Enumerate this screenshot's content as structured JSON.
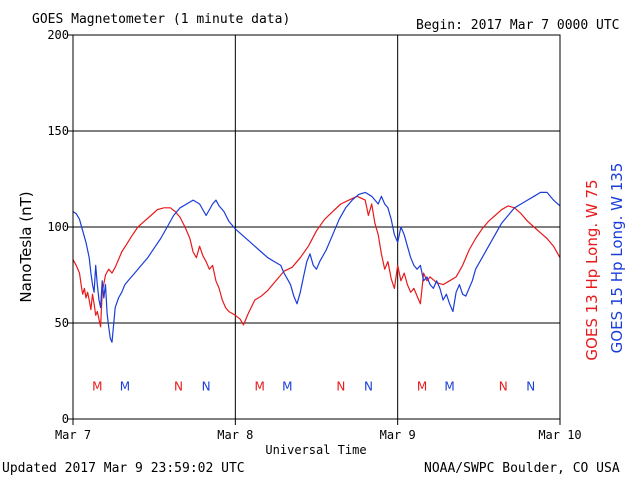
{
  "header": {
    "title": "GOES Magnetometer (1 minute data)",
    "begin": "Begin:  2017 Mar 7 0000 UTC"
  },
  "footer": {
    "updated": "Updated 2017 Mar  9 23:59:02 UTC",
    "credit": "NOAA/SWPC Boulder, CO USA"
  },
  "chart_data": {
    "type": "line",
    "title": "GOES Magnetometer (1 minute data)",
    "xlabel": "Universal Time",
    "ylabel": "NanoTesla (nT)",
    "xlim": [
      0,
      3
    ],
    "ylim": [
      0,
      200
    ],
    "x_ticks": [
      {
        "value": 0,
        "label": "Mar 7"
      },
      {
        "value": 1,
        "label": "Mar 8"
      },
      {
        "value": 2,
        "label": "Mar 9"
      },
      {
        "value": 3,
        "label": "Mar 10"
      }
    ],
    "y_ticks": [
      {
        "value": 0,
        "label": "0"
      },
      {
        "value": 50,
        "label": "50"
      },
      {
        "value": 100,
        "label": "100"
      },
      {
        "value": 150,
        "label": "150"
      },
      {
        "value": 200,
        "label": "200"
      }
    ],
    "grid": true,
    "series": [
      {
        "name": "GOES 13 Hp  Long. W 75",
        "color": "#e8191a",
        "points": [
          [
            0.0,
            83
          ],
          [
            0.02,
            80
          ],
          [
            0.04,
            76
          ],
          [
            0.05,
            70
          ],
          [
            0.06,
            65
          ],
          [
            0.07,
            68
          ],
          [
            0.08,
            63
          ],
          [
            0.09,
            66
          ],
          [
            0.1,
            62
          ],
          [
            0.11,
            57
          ],
          [
            0.12,
            65
          ],
          [
            0.13,
            60
          ],
          [
            0.14,
            54
          ],
          [
            0.15,
            56
          ],
          [
            0.16,
            52
          ],
          [
            0.17,
            48
          ],
          [
            0.18,
            66
          ],
          [
            0.2,
            75
          ],
          [
            0.22,
            78
          ],
          [
            0.24,
            76
          ],
          [
            0.26,
            79
          ],
          [
            0.28,
            83
          ],
          [
            0.3,
            87
          ],
          [
            0.33,
            91
          ],
          [
            0.36,
            95
          ],
          [
            0.4,
            100
          ],
          [
            0.44,
            103
          ],
          [
            0.48,
            106
          ],
          [
            0.52,
            109
          ],
          [
            0.56,
            110
          ],
          [
            0.6,
            110
          ],
          [
            0.63,
            108
          ],
          [
            0.66,
            105
          ],
          [
            0.69,
            100
          ],
          [
            0.72,
            94
          ],
          [
            0.74,
            87
          ],
          [
            0.76,
            84
          ],
          [
            0.78,
            90
          ],
          [
            0.8,
            85
          ],
          [
            0.82,
            82
          ],
          [
            0.84,
            78
          ],
          [
            0.86,
            80
          ],
          [
            0.88,
            72
          ],
          [
            0.9,
            68
          ],
          [
            0.92,
            62
          ],
          [
            0.94,
            58
          ],
          [
            0.96,
            56
          ],
          [
            0.98,
            55
          ],
          [
            1.0,
            54
          ],
          [
            1.03,
            52
          ],
          [
            1.05,
            49
          ],
          [
            1.08,
            55
          ],
          [
            1.12,
            62
          ],
          [
            1.16,
            64
          ],
          [
            1.2,
            67
          ],
          [
            1.25,
            72
          ],
          [
            1.3,
            77
          ],
          [
            1.35,
            79
          ],
          [
            1.4,
            84
          ],
          [
            1.45,
            90
          ],
          [
            1.5,
            98
          ],
          [
            1.55,
            104
          ],
          [
            1.6,
            108
          ],
          [
            1.65,
            112
          ],
          [
            1.7,
            114
          ],
          [
            1.75,
            116
          ],
          [
            1.8,
            114
          ],
          [
            1.82,
            106
          ],
          [
            1.84,
            112
          ],
          [
            1.86,
            102
          ],
          [
            1.88,
            96
          ],
          [
            1.9,
            86
          ],
          [
            1.92,
            78
          ],
          [
            1.94,
            82
          ],
          [
            1.96,
            73
          ],
          [
            1.98,
            68
          ],
          [
            2.0,
            80
          ],
          [
            2.02,
            72
          ],
          [
            2.04,
            76
          ],
          [
            2.06,
            70
          ],
          [
            2.08,
            66
          ],
          [
            2.1,
            68
          ],
          [
            2.12,
            64
          ],
          [
            2.14,
            60
          ],
          [
            2.16,
            76
          ],
          [
            2.18,
            72
          ],
          [
            2.2,
            74
          ],
          [
            2.24,
            71
          ],
          [
            2.28,
            70
          ],
          [
            2.32,
            72
          ],
          [
            2.36,
            74
          ],
          [
            2.4,
            80
          ],
          [
            2.44,
            88
          ],
          [
            2.48,
            94
          ],
          [
            2.52,
            99
          ],
          [
            2.56,
            103
          ],
          [
            2.6,
            106
          ],
          [
            2.64,
            109
          ],
          [
            2.68,
            111
          ],
          [
            2.72,
            110
          ],
          [
            2.76,
            107
          ],
          [
            2.8,
            103
          ],
          [
            2.84,
            100
          ],
          [
            2.88,
            97
          ],
          [
            2.92,
            94
          ],
          [
            2.96,
            90
          ],
          [
            3.0,
            84
          ]
        ]
      },
      {
        "name": "GOES 15 Hp  Long. W 135",
        "color": "#1a3dd9",
        "points": [
          [
            0.0,
            108
          ],
          [
            0.02,
            107
          ],
          [
            0.04,
            104
          ],
          [
            0.06,
            98
          ],
          [
            0.08,
            92
          ],
          [
            0.1,
            84
          ],
          [
            0.11,
            76
          ],
          [
            0.12,
            70
          ],
          [
            0.13,
            66
          ],
          [
            0.14,
            80
          ],
          [
            0.15,
            70
          ],
          [
            0.16,
            62
          ],
          [
            0.17,
            58
          ],
          [
            0.18,
            72
          ],
          [
            0.19,
            63
          ],
          [
            0.2,
            70
          ],
          [
            0.21,
            55
          ],
          [
            0.22,
            48
          ],
          [
            0.23,
            42
          ],
          [
            0.24,
            40
          ],
          [
            0.26,
            58
          ],
          [
            0.28,
            63
          ],
          [
            0.3,
            66
          ],
          [
            0.32,
            70
          ],
          [
            0.35,
            73
          ],
          [
            0.38,
            76
          ],
          [
            0.42,
            80
          ],
          [
            0.46,
            84
          ],
          [
            0.5,
            89
          ],
          [
            0.54,
            94
          ],
          [
            0.58,
            100
          ],
          [
            0.62,
            106
          ],
          [
            0.66,
            110
          ],
          [
            0.7,
            112
          ],
          [
            0.74,
            114
          ],
          [
            0.78,
            112
          ],
          [
            0.82,
            106
          ],
          [
            0.86,
            112
          ],
          [
            0.88,
            114
          ],
          [
            0.9,
            111
          ],
          [
            0.93,
            108
          ],
          [
            0.96,
            103
          ],
          [
            1.0,
            99
          ],
          [
            1.04,
            96
          ],
          [
            1.08,
            93
          ],
          [
            1.12,
            90
          ],
          [
            1.16,
            87
          ],
          [
            1.2,
            84
          ],
          [
            1.24,
            82
          ],
          [
            1.28,
            80
          ],
          [
            1.3,
            76
          ],
          [
            1.32,
            73
          ],
          [
            1.34,
            70
          ],
          [
            1.36,
            64
          ],
          [
            1.38,
            60
          ],
          [
            1.4,
            66
          ],
          [
            1.42,
            74
          ],
          [
            1.44,
            82
          ],
          [
            1.46,
            86
          ],
          [
            1.48,
            80
          ],
          [
            1.5,
            78
          ],
          [
            1.52,
            82
          ],
          [
            1.56,
            88
          ],
          [
            1.6,
            96
          ],
          [
            1.64,
            104
          ],
          [
            1.68,
            110
          ],
          [
            1.72,
            114
          ],
          [
            1.76,
            117
          ],
          [
            1.8,
            118
          ],
          [
            1.84,
            116
          ],
          [
            1.88,
            112
          ],
          [
            1.9,
            116
          ],
          [
            1.92,
            112
          ],
          [
            1.94,
            110
          ],
          [
            1.96,
            104
          ],
          [
            1.98,
            96
          ],
          [
            2.0,
            92
          ],
          [
            2.02,
            100
          ],
          [
            2.04,
            96
          ],
          [
            2.06,
            90
          ],
          [
            2.08,
            84
          ],
          [
            2.1,
            80
          ],
          [
            2.12,
            78
          ],
          [
            2.14,
            80
          ],
          [
            2.16,
            72
          ],
          [
            2.18,
            74
          ],
          [
            2.2,
            70
          ],
          [
            2.22,
            68
          ],
          [
            2.24,
            72
          ],
          [
            2.26,
            68
          ],
          [
            2.28,
            62
          ],
          [
            2.3,
            65
          ],
          [
            2.32,
            60
          ],
          [
            2.34,
            56
          ],
          [
            2.36,
            66
          ],
          [
            2.38,
            70
          ],
          [
            2.4,
            65
          ],
          [
            2.42,
            64
          ],
          [
            2.44,
            68
          ],
          [
            2.46,
            72
          ],
          [
            2.48,
            78
          ],
          [
            2.52,
            84
          ],
          [
            2.56,
            90
          ],
          [
            2.6,
            96
          ],
          [
            2.64,
            102
          ],
          [
            2.68,
            106
          ],
          [
            2.72,
            110
          ],
          [
            2.76,
            112
          ],
          [
            2.8,
            114
          ],
          [
            2.84,
            116
          ],
          [
            2.88,
            118
          ],
          [
            2.92,
            118
          ],
          [
            2.96,
            114
          ],
          [
            3.0,
            111
          ]
        ]
      }
    ],
    "markers": [
      {
        "label": "M",
        "x": 0.15,
        "series": 0
      },
      {
        "label": "M",
        "x": 0.32,
        "series": 1
      },
      {
        "label": "N",
        "x": 0.65,
        "series": 0
      },
      {
        "label": "N",
        "x": 0.82,
        "series": 1
      },
      {
        "label": "M",
        "x": 1.15,
        "series": 0
      },
      {
        "label": "M",
        "x": 1.32,
        "series": 1
      },
      {
        "label": "N",
        "x": 1.65,
        "series": 0
      },
      {
        "label": "N",
        "x": 1.82,
        "series": 1
      },
      {
        "label": "M",
        "x": 2.15,
        "series": 0
      },
      {
        "label": "M",
        "x": 2.32,
        "series": 1
      },
      {
        "label": "N",
        "x": 2.65,
        "series": 0
      },
      {
        "label": "N",
        "x": 2.82,
        "series": 1
      }
    ],
    "marker_level": 17
  }
}
